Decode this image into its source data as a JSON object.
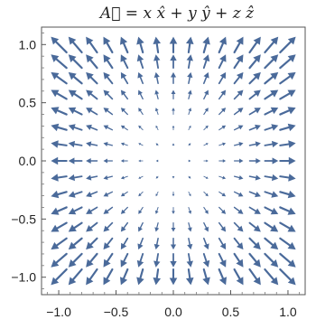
{
  "chart_data": {
    "type": "vector-field",
    "title": "A⃗ = x x̂ + y ŷ + z ẑ",
    "xlabel": "",
    "ylabel": "",
    "xlim": [
      -1.15,
      1.15
    ],
    "ylim": [
      -1.15,
      1.15
    ],
    "x_ticks": [
      -1.0,
      -0.5,
      0.0,
      0.5,
      1.0
    ],
    "x_tick_labels": [
      "−1.0",
      "−0.5",
      "0.0",
      "0.5",
      "1.0"
    ],
    "y_ticks": [
      -1.0,
      -0.5,
      0.0,
      0.5,
      1.0
    ],
    "y_tick_labels": [
      "−1.0",
      "−0.5",
      "0.0",
      "0.5",
      "1.0"
    ],
    "grid": false,
    "field": {
      "u": "x",
      "v": "y"
    },
    "sample_grid": {
      "min": -1.0,
      "max": 1.0,
      "count": 15
    },
    "arrow_color": "#4a6a9a"
  }
}
